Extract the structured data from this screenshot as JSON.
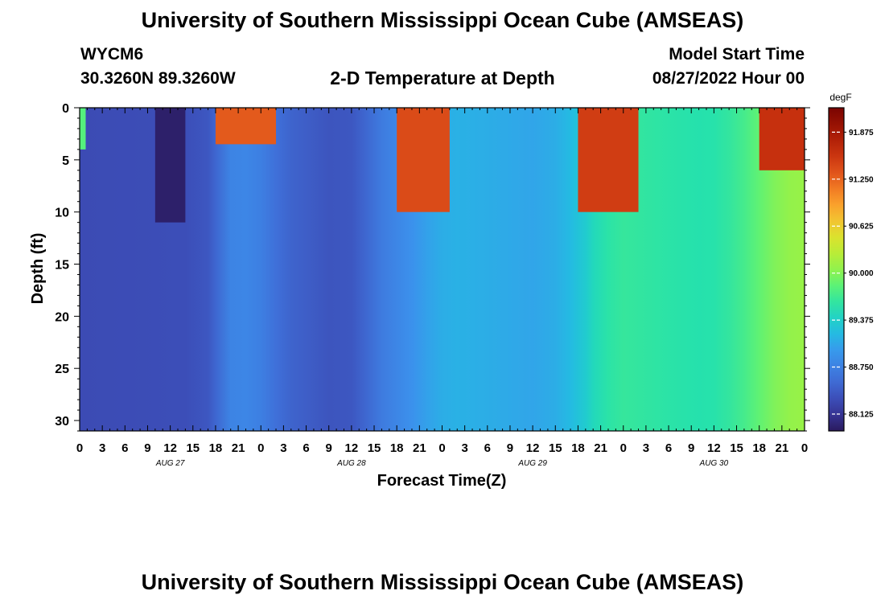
{
  "header": {
    "title": "University of Southern Mississippi Ocean Cube (AMSEAS)",
    "station": "WYCM6",
    "coords": "30.3260N  89.3260W",
    "subtitle": "2-D Temperature at Depth",
    "start_label": "Model Start Time",
    "start_value": "08/27/2022 Hour 00"
  },
  "footer": {
    "title": "University of Southern Mississippi Ocean Cube (AMSEAS)"
  },
  "chart_data": {
    "type": "heatmap",
    "title": "2-D Temperature at Depth",
    "xlabel": "Forecast Time(Z)",
    "ylabel": "Depth (ft)",
    "x_hours": [
      0,
      96
    ],
    "xlim": [
      0,
      96
    ],
    "ylim": [
      0,
      31
    ],
    "x_tick_labels": [
      "0",
      "3",
      "6",
      "9",
      "12",
      "15",
      "18",
      "21",
      "0",
      "3",
      "6",
      "9",
      "12",
      "15",
      "18",
      "21",
      "0",
      "3",
      "6",
      "9",
      "12",
      "15",
      "18",
      "21",
      "0",
      "3",
      "6",
      "9",
      "12",
      "15",
      "18",
      "21",
      "0"
    ],
    "y_ticks": [
      0,
      5,
      10,
      15,
      20,
      25,
      30
    ],
    "day_labels": [
      {
        "hour": 12,
        "label": "AUG 27"
      },
      {
        "hour": 36,
        "label": "AUG 28"
      },
      {
        "hour": 60,
        "label": "AUG 29"
      },
      {
        "hour": 84,
        "label": "AUG 30"
      }
    ],
    "colorbar": {
      "unit": "degF",
      "range": [
        87.9,
        92.2
      ],
      "ticks": [
        "88.125",
        "88.750",
        "89.375",
        "90.000",
        "90.625",
        "91.250",
        "91.875"
      ]
    },
    "deep_water_temperature_by_hour": [
      [
        0,
        88.3
      ],
      [
        14,
        88.33
      ],
      [
        17,
        88.4
      ],
      [
        18,
        88.52
      ],
      [
        20,
        88.78
      ],
      [
        22,
        88.8
      ],
      [
        24,
        88.74
      ],
      [
        26,
        88.6
      ],
      [
        28,
        88.5
      ],
      [
        33,
        88.38
      ],
      [
        36,
        88.4
      ],
      [
        38,
        88.53
      ],
      [
        40,
        88.7
      ],
      [
        42,
        88.8
      ],
      [
        44,
        88.9
      ],
      [
        46,
        89.02
      ],
      [
        48,
        89.1
      ],
      [
        50,
        89.13
      ],
      [
        54,
        89.1
      ],
      [
        60,
        89.05
      ],
      [
        63,
        89.1
      ],
      [
        65,
        89.2
      ],
      [
        67,
        89.34
      ],
      [
        68,
        89.46
      ],
      [
        70,
        89.58
      ],
      [
        72,
        89.64
      ],
      [
        76,
        89.6
      ],
      [
        78,
        89.58
      ],
      [
        82,
        89.55
      ],
      [
        84,
        89.56
      ],
      [
        86,
        89.62
      ],
      [
        88,
        89.72
      ],
      [
        90,
        89.85
      ],
      [
        92,
        89.98
      ],
      [
        94,
        90.06
      ],
      [
        96,
        90.08
      ]
    ],
    "surface_features": [
      {
        "hours": [
          0,
          0.8
        ],
        "depth_ft": [
          0,
          4
        ],
        "temperature": 89.8
      },
      {
        "hours": [
          10,
          14
        ],
        "depth_ft": [
          0,
          11
        ],
        "temperature": 87.95
      },
      {
        "hours": [
          18,
          26
        ],
        "depth_ft": [
          0,
          3.5
        ],
        "temperature": 91.3
      },
      {
        "hours": [
          42,
          49
        ],
        "depth_ft": [
          0,
          10
        ],
        "temperature": 91.4
      },
      {
        "hours": [
          66,
          74
        ],
        "depth_ft": [
          0,
          10
        ],
        "temperature": 91.5
      },
      {
        "hours": [
          90,
          96
        ],
        "depth_ft": [
          0,
          6
        ],
        "temperature": 91.6
      }
    ]
  }
}
